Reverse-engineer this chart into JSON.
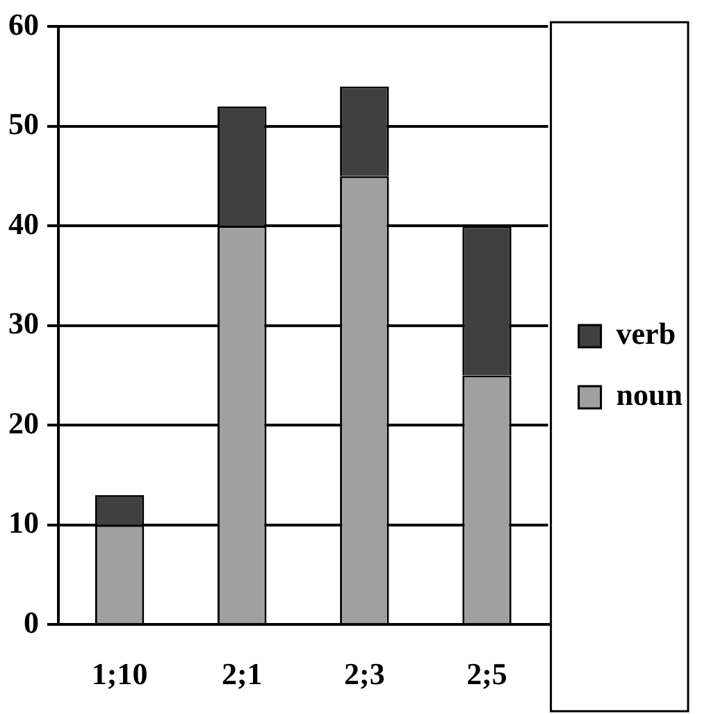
{
  "chart_data": {
    "type": "bar",
    "stacked": true,
    "categories": [
      "1;10",
      "2;1",
      "2;3",
      "2;5"
    ],
    "series": [
      {
        "name": "noun",
        "color": "#a0a0a0",
        "values": [
          10,
          40,
          45,
          25
        ]
      },
      {
        "name": "verb",
        "color": "#404040",
        "values": [
          3,
          12,
          9,
          15
        ]
      }
    ],
    "ylim": [
      0,
      60
    ],
    "yticks": [
      0,
      10,
      20,
      30,
      40,
      50,
      60
    ],
    "grid": "y",
    "legend": "right"
  }
}
